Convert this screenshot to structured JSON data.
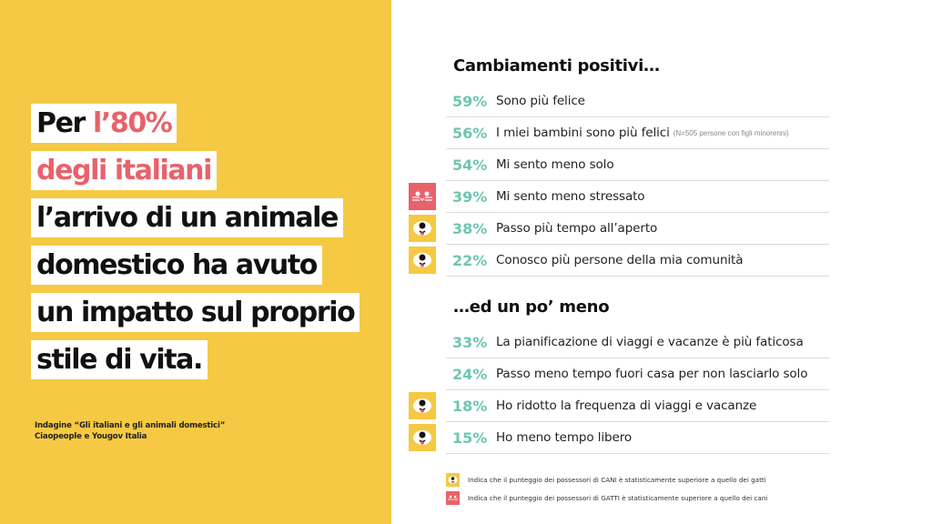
{
  "headline": {
    "line1_prefix": "Per",
    "line1_accent": "l’80%",
    "line2": "degli italiani",
    "line3": "l’arrivo di un animale",
    "line4": "domestico ha avuto",
    "line5": "un impatto sul proprio",
    "line6": "stile di vita."
  },
  "source": {
    "line1": "Indagine “Gli italiani e gli animali domestici”",
    "line2": "Ciaopeople e Yougov Italia"
  },
  "positive": {
    "title": "Cambiamenti positivi…",
    "items": [
      {
        "pct": "59%",
        "label": "Sono più felice",
        "note": "",
        "icon": ""
      },
      {
        "pct": "56%",
        "label": "I miei bambini sono più felici",
        "note": "(N=505 persone con figli minorenni)",
        "icon": ""
      },
      {
        "pct": "54%",
        "label": "Mi sento meno solo",
        "note": "",
        "icon": ""
      },
      {
        "pct": "39%",
        "label": "Mi sento meno stressato",
        "note": "",
        "icon": "cat-icon"
      },
      {
        "pct": "38%",
        "label": "Passo più tempo all’aperto",
        "note": "",
        "icon": "dog-icon"
      },
      {
        "pct": "22%",
        "label": "Conosco più persone della mia comunità",
        "note": "",
        "icon": "dog-icon"
      }
    ]
  },
  "negative": {
    "title": "…ed un po’ meno",
    "items": [
      {
        "pct": "33%",
        "label": "La pianificazione di viaggi e vacanze è più faticosa",
        "icon": ""
      },
      {
        "pct": "24%",
        "label": "Passo meno tempo fuori casa per non lasciarlo solo",
        "icon": ""
      },
      {
        "pct": "18%",
        "label": "Ho ridotto la frequenza di viaggi e vacanze",
        "icon": "dog-icon"
      },
      {
        "pct": "15%",
        "label": "Ho meno tempo libero",
        "icon": "dog-icon"
      }
    ]
  },
  "legend": {
    "dog": "Indica che il punteggio dei possessori di CANI è statisticamente superiore a quello dei gatti",
    "cat": "Indica che il punteggio dei possessori di GATTI è statisticamente superiore a quello dei cani"
  },
  "colors": {
    "yellow": "#f6c944",
    "coral": "#e8626b",
    "teal": "#6cc7b0"
  }
}
